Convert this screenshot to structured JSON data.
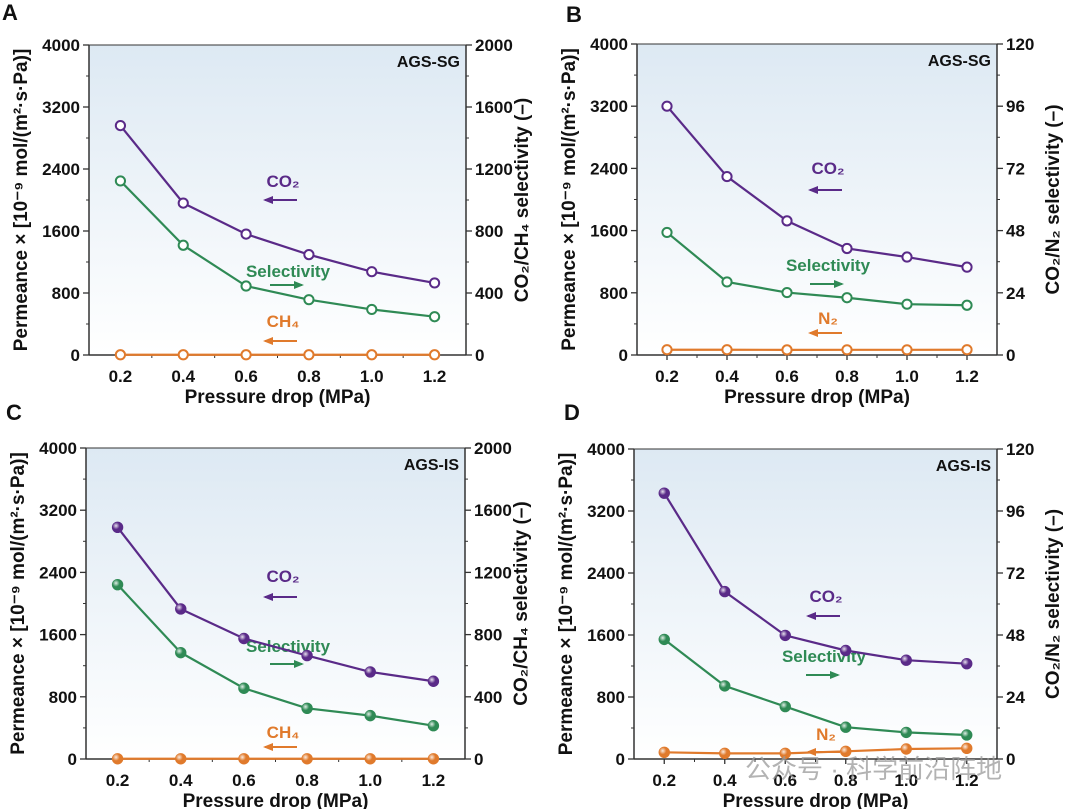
{
  "watermark": "公众号 · 科学前沿阵地",
  "colors": {
    "co2": "#5a2a88",
    "selectivity": "#2f8a55",
    "minor_gas": "#e07a2c",
    "axis": "#333333",
    "plot_bg_top": "#dde9f3",
    "plot_bg_bottom": "#ffffff"
  },
  "chart_data": [
    {
      "panel": "A",
      "type": "line",
      "sample": "AGS-SG",
      "marker": "open-circle",
      "x": [
        0.2,
        0.4,
        0.6,
        0.8,
        1.0,
        1.2
      ],
      "xlabel": "Pressure drop (MPa)",
      "xlim": [
        0.1,
        1.3
      ],
      "xticks": [
        "0.2",
        "0.4",
        "0.6",
        "0.8",
        "1.0",
        "1.2"
      ],
      "ylabel_left": "Permeance × [10⁻⁹ mol/(m²·s·Pa)]",
      "ylim_left": [
        0,
        4000
      ],
      "yticks_left": [
        "0",
        "800",
        "1600",
        "2400",
        "3200",
        "4000"
      ],
      "ylabel_right": "CO₂/CH₄ selectivity (–)",
      "ylim_right": [
        0,
        2000
      ],
      "yticks_right": [
        "0",
        "400",
        "800",
        "1200",
        "1600",
        "2000"
      ],
      "series": [
        {
          "name": "CO₂",
          "axis": "left",
          "color_key": "co2",
          "arrow": "left",
          "values": [
            2960,
            1960,
            1560,
            1295,
            1075,
            930
          ]
        },
        {
          "name": "Selectivity",
          "axis": "right",
          "color_key": "selectivity",
          "arrow": "right",
          "values": [
            1123,
            708,
            445,
            357,
            294,
            247
          ]
        },
        {
          "name": "CH₄",
          "axis": "left",
          "color_key": "minor_gas",
          "arrow": "left",
          "values": [
            3,
            3,
            3,
            3,
            3,
            3
          ]
        }
      ]
    },
    {
      "panel": "B",
      "type": "line",
      "sample": "AGS-SG",
      "marker": "open-circle",
      "x": [
        0.2,
        0.4,
        0.6,
        0.8,
        1.0,
        1.2
      ],
      "xlabel": "Pressure drop (MPa)",
      "xlim": [
        0.1,
        1.3
      ],
      "xticks": [
        "0.2",
        "0.4",
        "0.6",
        "0.8",
        "1.0",
        "1.2"
      ],
      "ylabel_left": "Permeance × [10⁻⁹ mol/(m²·s·Pa)]",
      "ylim_left": [
        0,
        4000
      ],
      "yticks_left": [
        "0",
        "800",
        "1600",
        "2400",
        "3200",
        "4000"
      ],
      "ylabel_right": "CO₂/N₂ selectivity (–)",
      "ylim_right": [
        0,
        120
      ],
      "yticks_right": [
        "0",
        "24",
        "48",
        "72",
        "96",
        "120"
      ],
      "series": [
        {
          "name": "CO₂",
          "axis": "left",
          "color_key": "co2",
          "arrow": "left",
          "values": [
            3200,
            2295,
            1725,
            1370,
            1260,
            1130
          ]
        },
        {
          "name": "Selectivity",
          "axis": "right",
          "color_key": "selectivity",
          "arrow": "right",
          "values": [
            47.3,
            28.2,
            24.1,
            22.1,
            19.6,
            19.2
          ]
        },
        {
          "name": "N₂",
          "axis": "left",
          "color_key": "minor_gas",
          "arrow": "left",
          "values": [
            68,
            68,
            66,
            67,
            67,
            68
          ]
        }
      ]
    },
    {
      "panel": "C",
      "type": "line",
      "sample": "AGS-IS",
      "marker": "filled-sphere",
      "x": [
        0.2,
        0.4,
        0.6,
        0.8,
        1.0,
        1.2
      ],
      "xlabel": "Pressure drop (MPa)",
      "xlim": [
        0.1,
        1.3
      ],
      "xticks": [
        "0.2",
        "0.4",
        "0.6",
        "0.8",
        "1.0",
        "1.2"
      ],
      "ylabel_left": "Permeance × [10⁻⁹ mol/(m²·s·Pa)]",
      "ylim_left": [
        0,
        4000
      ],
      "yticks_left": [
        "0",
        "800",
        "1600",
        "2400",
        "3200",
        "4000"
      ],
      "ylabel_right": "CO₂/CH₄ selectivity (–)",
      "ylim_right": [
        0,
        2000
      ],
      "yticks_right": [
        "0",
        "400",
        "800",
        "1200",
        "1600",
        "2000"
      ],
      "series": [
        {
          "name": "CO₂",
          "axis": "left",
          "color_key": "co2",
          "arrow": "left",
          "values": [
            2980,
            1930,
            1550,
            1330,
            1120,
            1000
          ]
        },
        {
          "name": "Selectivity",
          "axis": "right",
          "color_key": "selectivity",
          "arrow": "right",
          "values": [
            1121,
            684,
            455,
            326,
            279,
            214
          ]
        },
        {
          "name": "CH₄",
          "axis": "left",
          "color_key": "minor_gas",
          "arrow": "left",
          "values": [
            3,
            3,
            3,
            3,
            3,
            3
          ]
        }
      ]
    },
    {
      "panel": "D",
      "type": "line",
      "sample": "AGS-IS",
      "marker": "filled-sphere",
      "x": [
        0.2,
        0.4,
        0.6,
        0.8,
        1.0,
        1.2
      ],
      "xlabel": "Pressure drop (MPa)",
      "xlim": [
        0.1,
        1.3
      ],
      "xticks": [
        "0.2",
        "0.4",
        "0.6",
        "0.8",
        "1.0",
        "1.2"
      ],
      "ylabel_left": "Permeance × [10⁻⁹ mol/(m²·s·Pa)]",
      "ylim_left": [
        0,
        4000
      ],
      "yticks_left": [
        "0",
        "800",
        "1600",
        "2400",
        "3200",
        "4000"
      ],
      "ylabel_right": "CO₂/N₂ selectivity (–)",
      "ylim_right": [
        0,
        120
      ],
      "yticks_right": [
        "0",
        "24",
        "48",
        "72",
        "96",
        "120"
      ],
      "series": [
        {
          "name": "CO₂",
          "axis": "left",
          "color_key": "co2",
          "arrow": "left",
          "values": [
            3430,
            2160,
            1595,
            1400,
            1275,
            1230
          ]
        },
        {
          "name": "Selectivity",
          "axis": "right",
          "color_key": "selectivity",
          "arrow": "right",
          "values": [
            46.3,
            28.3,
            20.3,
            12.3,
            10.3,
            9.3
          ]
        },
        {
          "name": "N₂",
          "axis": "left",
          "color_key": "minor_gas",
          "arrow": "left",
          "values": [
            86,
            73,
            73,
            99,
            129,
            138
          ]
        }
      ]
    }
  ]
}
